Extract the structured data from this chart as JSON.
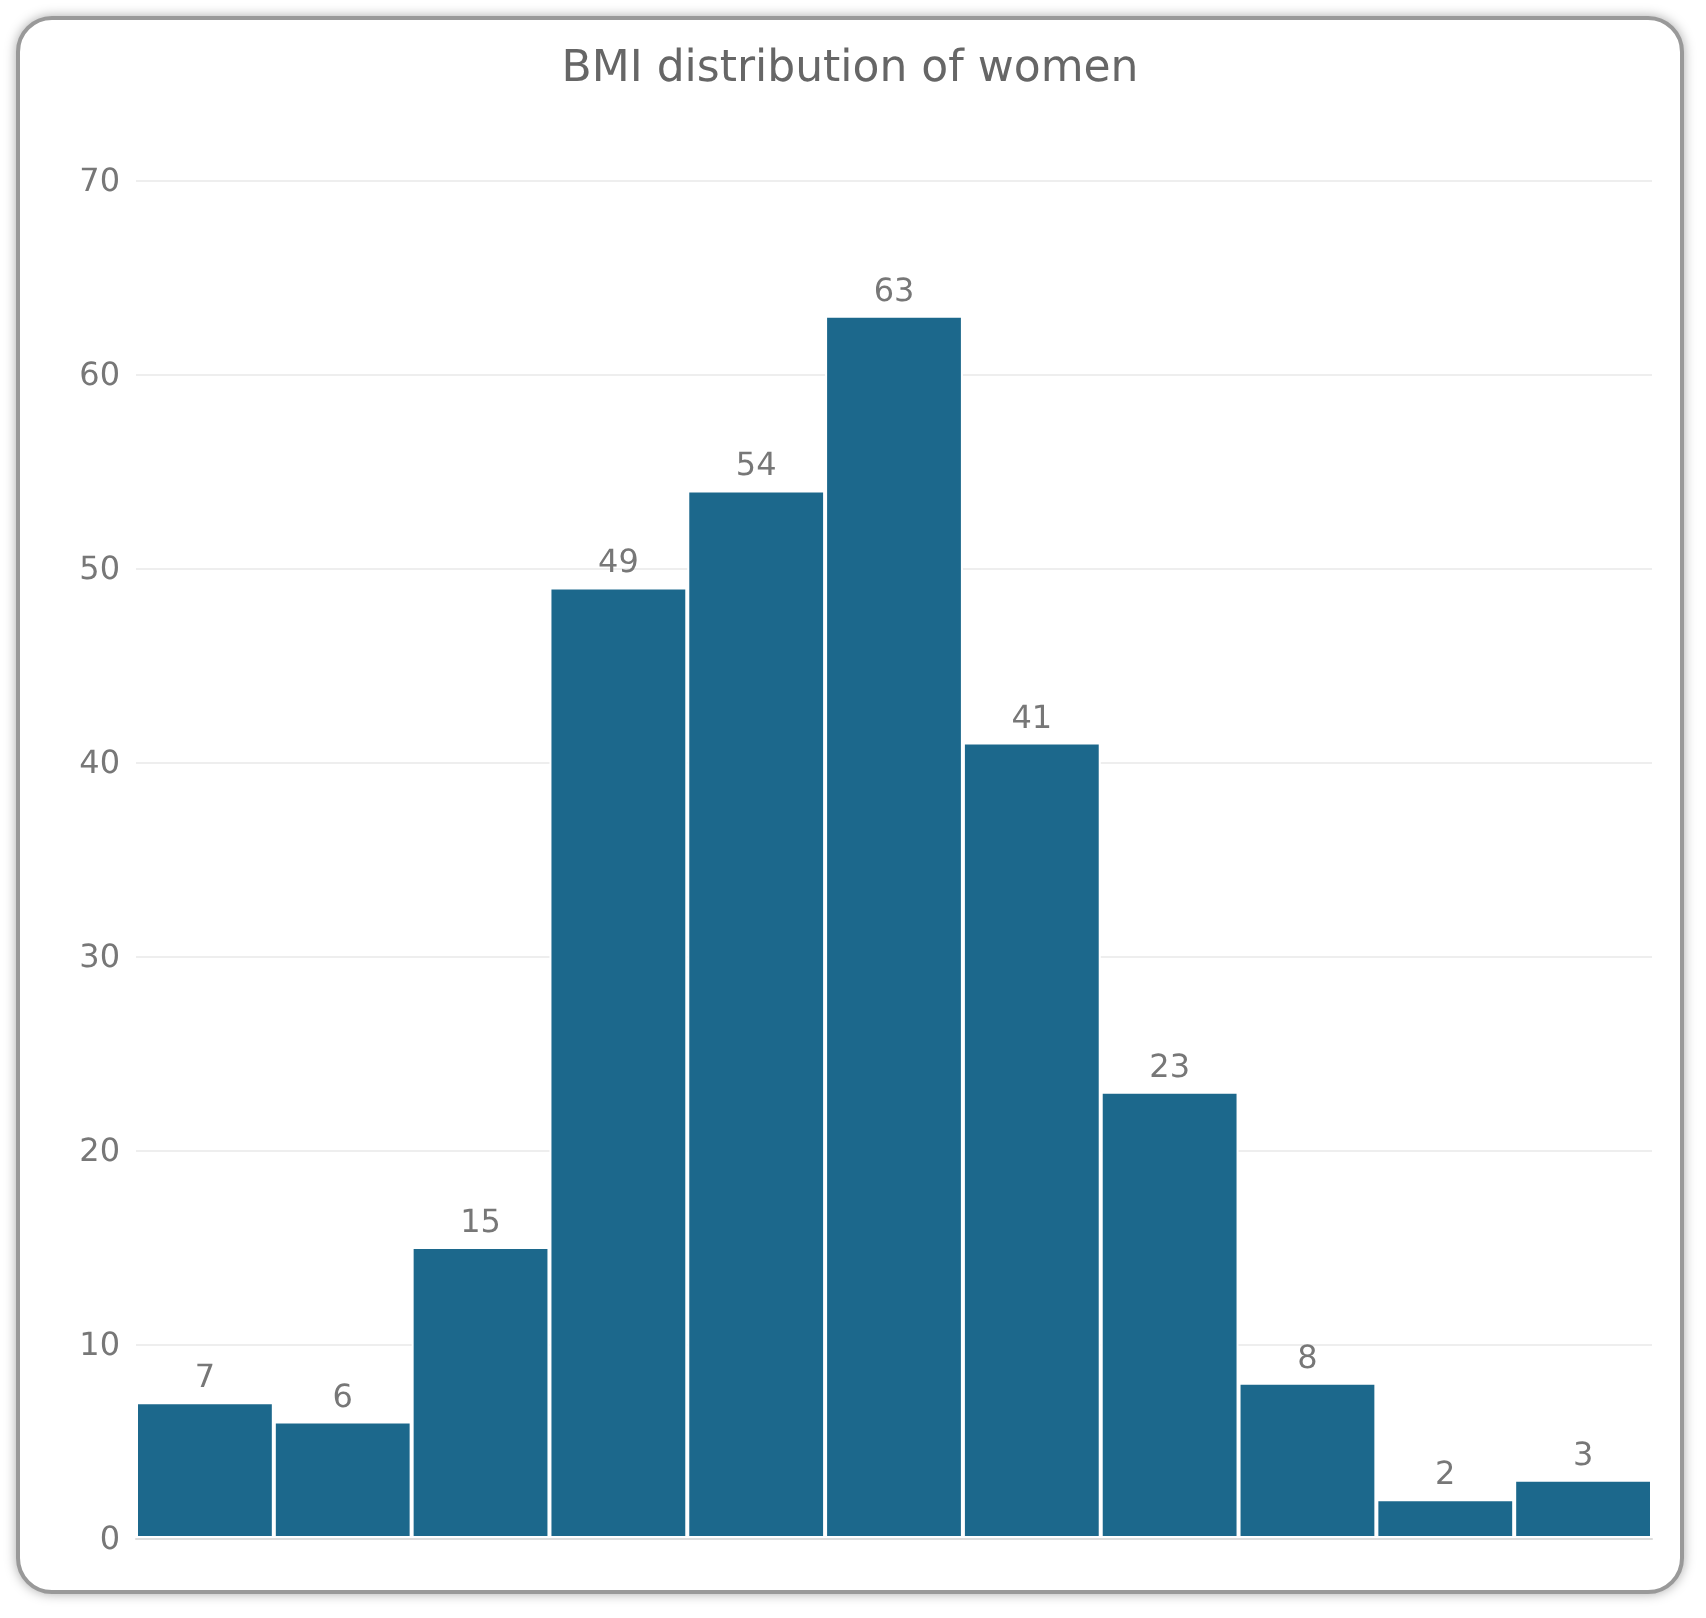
{
  "chart_data": {
    "type": "bar",
    "title": "BMI distribution of women",
    "categories": [
      null,
      null,
      null,
      null,
      null,
      null,
      null,
      null,
      null,
      null,
      null
    ],
    "values": [
      7,
      6,
      15,
      49,
      54,
      63,
      41,
      23,
      8,
      2,
      3
    ],
    "color": "#1c688c",
    "ylim": [
      0,
      70
    ],
    "yticks": [
      0,
      10,
      20,
      30,
      40,
      50,
      60,
      70
    ],
    "grid": "y",
    "data_labels": true
  }
}
